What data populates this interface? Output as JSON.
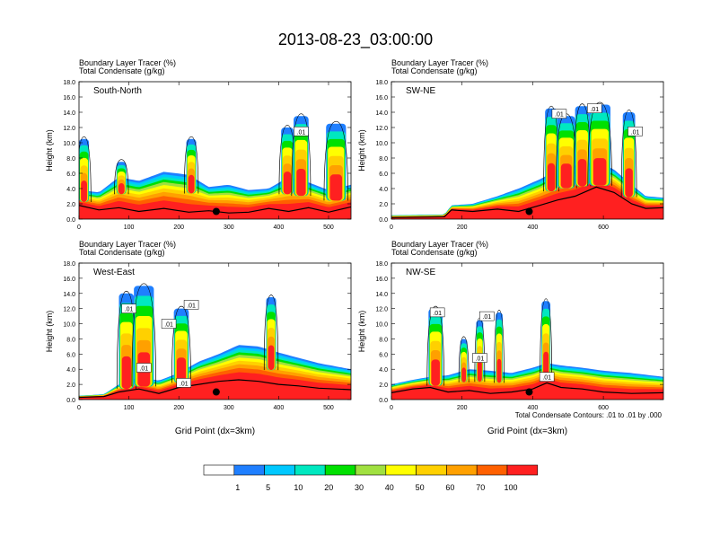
{
  "title": "2013-08-23_03:00:00",
  "colors": {
    "levels": [
      "#ffffff",
      "#1f7fff",
      "#00c8ff",
      "#00e8c0",
      "#00e000",
      "#a0e040",
      "#ffff00",
      "#ffd000",
      "#ffa000",
      "#ff6000",
      "#ff2020"
    ],
    "contour": "#000000",
    "terrain": "#000000",
    "marker": "#000000"
  },
  "colorbar": {
    "labels": [
      "1",
      "5",
      "10",
      "20",
      "30",
      "40",
      "50",
      "60",
      "70",
      "100"
    ]
  },
  "contour_note": "Total Condensate Contours: .01 to .01 by .000",
  "chart_data": [
    {
      "type": "heatmap",
      "panel_title": "South-North",
      "subtitle_line1": "Boundary Layer Tracer   (%)",
      "subtitle_line2": "Total Condensate   (g/kg)",
      "ylabel": "Height (km)",
      "xlabel": "",
      "xlim": [
        0,
        545
      ],
      "ylim": [
        0,
        18
      ],
      "xticks": [
        "0",
        "100",
        "200",
        "300",
        "400",
        "500"
      ],
      "yticks": [
        "0.0",
        "2.0",
        "4.0",
        "6.0",
        "8.0",
        "10.0",
        "12.0",
        "14.0",
        "16.0",
        "18.0"
      ],
      "contour_labels": [
        {
          "x": 445,
          "z": 11.5,
          "text": ".01"
        }
      ],
      "marker": {
        "x": 275,
        "z": 1.0
      },
      "terrain": [
        [
          0,
          1.8
        ],
        [
          40,
          1.2
        ],
        [
          80,
          1.5
        ],
        [
          120,
          1.0
        ],
        [
          170,
          1.4
        ],
        [
          220,
          0.9
        ],
        [
          260,
          1.1
        ],
        [
          300,
          0.8
        ],
        [
          340,
          0.9
        ],
        [
          380,
          1.4
        ],
        [
          420,
          1.0
        ],
        [
          460,
          1.5
        ],
        [
          500,
          0.9
        ],
        [
          545,
          1.6
        ]
      ],
      "pbl_top": [
        [
          0,
          3.8
        ],
        [
          40,
          3.5
        ],
        [
          80,
          5.5
        ],
        [
          120,
          5.0
        ],
        [
          170,
          6.2
        ],
        [
          220,
          5.8
        ],
        [
          260,
          4.2
        ],
        [
          300,
          4.5
        ],
        [
          340,
          3.8
        ],
        [
          380,
          4.0
        ],
        [
          420,
          5.5
        ],
        [
          460,
          4.8
        ],
        [
          500,
          3.8
        ],
        [
          545,
          4.5
        ]
      ],
      "towers": [
        {
          "x0": 0,
          "x1": 20,
          "top": 10.5
        },
        {
          "x0": 75,
          "x1": 95,
          "top": 7.5
        },
        {
          "x0": 215,
          "x1": 235,
          "top": 10.5
        },
        {
          "x0": 405,
          "x1": 430,
          "top": 12.0
        },
        {
          "x0": 430,
          "x1": 460,
          "top": 13.5
        },
        {
          "x0": 495,
          "x1": 535,
          "top": 12.5
        }
      ]
    },
    {
      "type": "heatmap",
      "panel_title": "SW-NE",
      "subtitle_line1": "Boundary Layer Tracer   (%)",
      "subtitle_line2": "Total Condensate   (g/kg)",
      "ylabel": "Height (km)",
      "xlabel": "",
      "xlim": [
        0,
        770
      ],
      "ylim": [
        0,
        18
      ],
      "xticks": [
        "0",
        "200",
        "400",
        "600"
      ],
      "yticks": [
        "0.0",
        "2.0",
        "4.0",
        "6.0",
        "8.0",
        "10.0",
        "12.0",
        "14.0",
        "16.0",
        "18.0"
      ],
      "contour_labels": [
        {
          "x": 475,
          "z": 13.8,
          "text": ".01"
        },
        {
          "x": 575,
          "z": 14.5,
          "text": ".01"
        },
        {
          "x": 690,
          "z": 11.5,
          "text": ".01"
        }
      ],
      "marker": {
        "x": 390,
        "z": 1.0
      },
      "terrain": [
        [
          0,
          0.2
        ],
        [
          150,
          0.3
        ],
        [
          170,
          1.2
        ],
        [
          230,
          1.0
        ],
        [
          300,
          1.3
        ],
        [
          360,
          1.0
        ],
        [
          420,
          1.8
        ],
        [
          470,
          2.5
        ],
        [
          520,
          3.0
        ],
        [
          580,
          4.2
        ],
        [
          630,
          3.5
        ],
        [
          680,
          2.0
        ],
        [
          720,
          1.4
        ],
        [
          770,
          1.5
        ]
      ],
      "pbl_top": [
        [
          0,
          0.5
        ],
        [
          150,
          0.6
        ],
        [
          170,
          1.8
        ],
        [
          230,
          2.0
        ],
        [
          300,
          3.0
        ],
        [
          360,
          4.0
        ],
        [
          420,
          5.2
        ],
        [
          470,
          6.5
        ],
        [
          520,
          7.0
        ],
        [
          580,
          7.5
        ],
        [
          630,
          6.5
        ],
        [
          680,
          4.5
        ],
        [
          720,
          3.0
        ],
        [
          770,
          2.8
        ]
      ],
      "towers": [
        {
          "x0": 435,
          "x1": 470,
          "top": 14.5
        },
        {
          "x0": 470,
          "x1": 520,
          "top": 13.5
        },
        {
          "x0": 520,
          "x1": 560,
          "top": 14.8
        },
        {
          "x0": 560,
          "x1": 620,
          "top": 15.0
        },
        {
          "x0": 655,
          "x1": 690,
          "top": 14.0
        }
      ]
    },
    {
      "type": "heatmap",
      "panel_title": "West-East",
      "subtitle_line1": "Boundary Layer Tracer   (%)",
      "subtitle_line2": "Total Condensate   (g/kg)",
      "ylabel": "Height (km)",
      "xlabel": "Grid Point (dx=3km)",
      "xlim": [
        0,
        545
      ],
      "ylim": [
        0,
        18
      ],
      "xticks": [
        "0",
        "100",
        "200",
        "300",
        "400",
        "500"
      ],
      "yticks": [
        "0.0",
        "2.0",
        "4.0",
        "6.0",
        "8.0",
        "10.0",
        "12.0",
        "14.0",
        "16.0",
        "18.0"
      ],
      "contour_labels": [
        {
          "x": 100,
          "z": 12.0,
          "text": ".01"
        },
        {
          "x": 225,
          "z": 12.5,
          "text": ".01"
        },
        {
          "x": 180,
          "z": 10.0,
          "text": ".01"
        },
        {
          "x": 130,
          "z": 4.2,
          "text": ".01"
        },
        {
          "x": 210,
          "z": 2.2,
          "text": ".01"
        }
      ],
      "marker": {
        "x": 275,
        "z": 1.0
      },
      "terrain": [
        [
          0,
          0.3
        ],
        [
          50,
          0.4
        ],
        [
          80,
          1.0
        ],
        [
          120,
          1.4
        ],
        [
          160,
          0.8
        ],
        [
          200,
          1.6
        ],
        [
          240,
          2.0
        ],
        [
          280,
          2.4
        ],
        [
          320,
          2.6
        ],
        [
          360,
          2.4
        ],
        [
          400,
          2.0
        ],
        [
          440,
          1.8
        ],
        [
          480,
          1.5
        ],
        [
          545,
          1.3
        ]
      ],
      "pbl_top": [
        [
          0,
          0.5
        ],
        [
          50,
          0.7
        ],
        [
          80,
          2.0
        ],
        [
          120,
          3.0
        ],
        [
          160,
          2.5
        ],
        [
          200,
          3.5
        ],
        [
          240,
          5.0
        ],
        [
          280,
          6.0
        ],
        [
          320,
          7.2
        ],
        [
          360,
          7.0
        ],
        [
          400,
          6.2
        ],
        [
          440,
          5.5
        ],
        [
          480,
          4.8
        ],
        [
          545,
          4.0
        ]
      ],
      "towers": [
        {
          "x0": 80,
          "x1": 110,
          "top": 14.0
        },
        {
          "x0": 110,
          "x1": 150,
          "top": 15.0
        },
        {
          "x0": 190,
          "x1": 220,
          "top": 12.0
        },
        {
          "x0": 375,
          "x1": 395,
          "top": 13.5
        }
      ]
    },
    {
      "type": "heatmap",
      "panel_title": "NW-SE",
      "subtitle_line1": "Boundary Layer Tracer   (%)",
      "subtitle_line2": "Total Condensate   (g/kg)",
      "ylabel": "Height (km)",
      "xlabel": "Grid Point (dx=3km)",
      "xlim": [
        0,
        770
      ],
      "ylim": [
        0,
        18
      ],
      "xticks": [
        "0",
        "200",
        "400",
        "600"
      ],
      "yticks": [
        "0.0",
        "2.0",
        "4.0",
        "6.0",
        "8.0",
        "10.0",
        "12.0",
        "14.0",
        "16.0",
        "18.0"
      ],
      "contour_labels": [
        {
          "x": 130,
          "z": 11.5,
          "text": ".01"
        },
        {
          "x": 270,
          "z": 11.0,
          "text": ".01"
        },
        {
          "x": 250,
          "z": 5.5,
          "text": ".01"
        },
        {
          "x": 440,
          "z": 3.0,
          "text": ".01"
        }
      ],
      "marker": {
        "x": 390,
        "z": 1.0
      },
      "terrain": [
        [
          0,
          0.9
        ],
        [
          60,
          1.4
        ],
        [
          110,
          1.6
        ],
        [
          160,
          1.0
        ],
        [
          220,
          1.2
        ],
        [
          280,
          0.8
        ],
        [
          340,
          1.0
        ],
        [
          400,
          1.4
        ],
        [
          440,
          2.2
        ],
        [
          480,
          1.6
        ],
        [
          540,
          1.4
        ],
        [
          600,
          1.0
        ],
        [
          680,
          0.8
        ],
        [
          770,
          0.9
        ]
      ],
      "pbl_top": [
        [
          0,
          2.0
        ],
        [
          60,
          2.6
        ],
        [
          110,
          3.0
        ],
        [
          160,
          3.2
        ],
        [
          220,
          4.0
        ],
        [
          280,
          3.8
        ],
        [
          340,
          3.5
        ],
        [
          400,
          4.2
        ],
        [
          440,
          4.8
        ],
        [
          480,
          4.5
        ],
        [
          540,
          4.2
        ],
        [
          600,
          3.8
        ],
        [
          680,
          3.5
        ],
        [
          770,
          3.0
        ]
      ],
      "towers": [
        {
          "x0": 105,
          "x1": 145,
          "top": 12.0
        },
        {
          "x0": 195,
          "x1": 215,
          "top": 8.0
        },
        {
          "x0": 240,
          "x1": 260,
          "top": 10.5
        },
        {
          "x0": 295,
          "x1": 315,
          "top": 11.5
        },
        {
          "x0": 425,
          "x1": 450,
          "top": 13.0
        }
      ]
    }
  ]
}
